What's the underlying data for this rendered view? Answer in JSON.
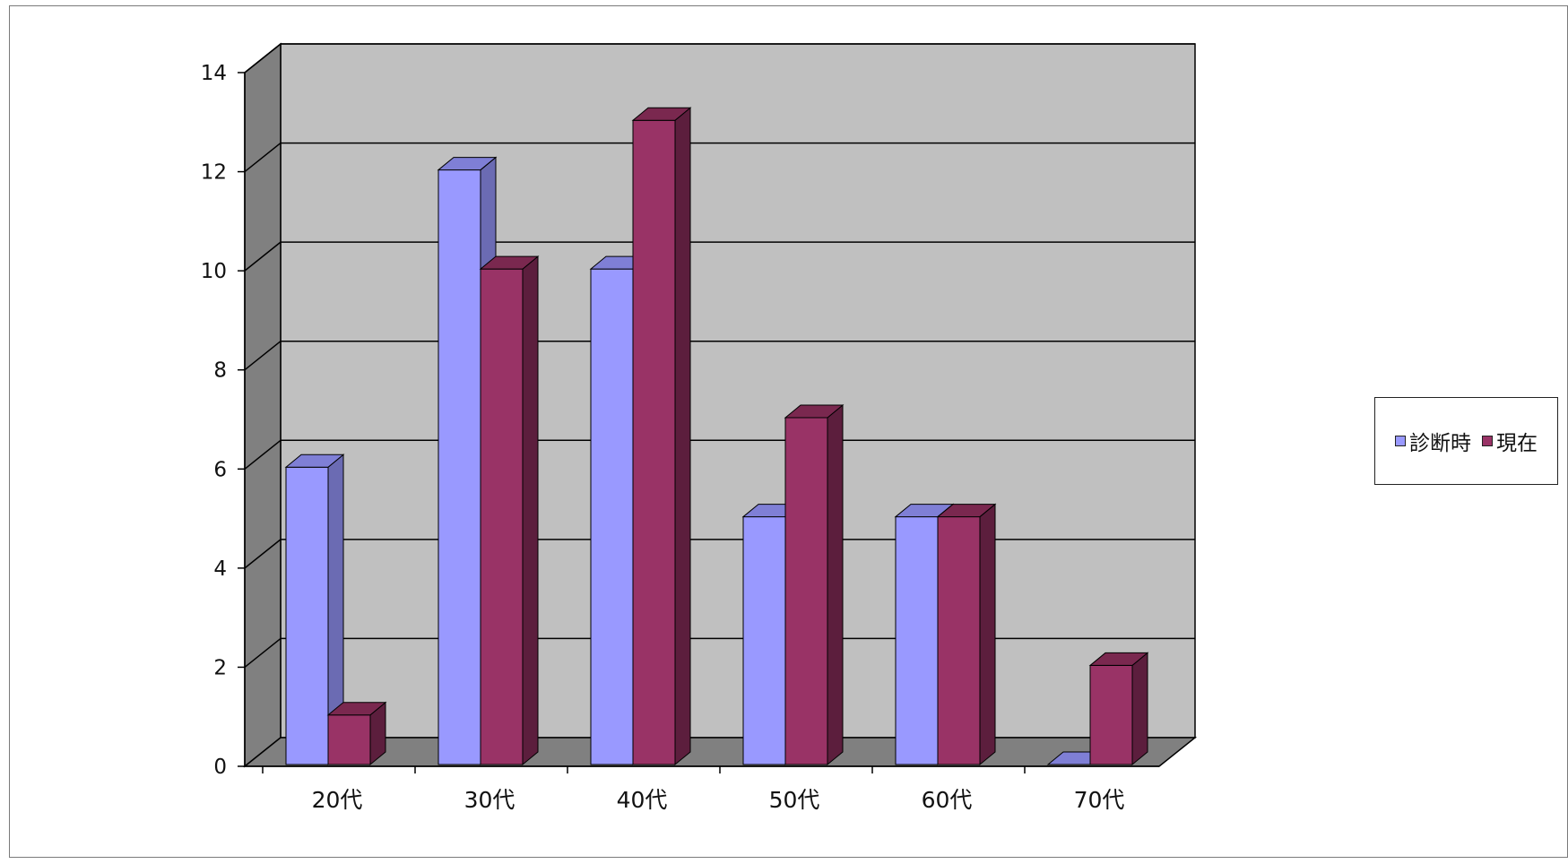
{
  "chart_data": {
    "type": "bar",
    "categories": [
      "20代",
      "30代",
      "40代",
      "50代",
      "60代",
      "70代"
    ],
    "series": [
      {
        "name": "診断時",
        "values": [
          6,
          12,
          10,
          5,
          5,
          0
        ],
        "color": "#9999ff",
        "side_color": "#6b6bb3",
        "top_color": "#7f7fd6"
      },
      {
        "name": "現在",
        "values": [
          1,
          10,
          13,
          7,
          5,
          2
        ],
        "color": "#993366",
        "side_color": "#5c1e3d",
        "top_color": "#7a284f"
      }
    ],
    "ylim": [
      0,
      14
    ],
    "yticks": [
      0,
      2,
      4,
      6,
      8,
      10,
      12,
      14
    ],
    "ytick_labels": [
      "0",
      "2",
      "4",
      "6",
      "8",
      "10",
      "12",
      "14"
    ],
    "title": "",
    "xlabel": "",
    "ylabel": "",
    "grid": true,
    "style": "3d-clustered-column",
    "legend_position": "right",
    "colors": {
      "back_wall": "#c0c0c0",
      "side_wall": "#808080",
      "floor": "#808080",
      "gridline": "#000000"
    }
  }
}
